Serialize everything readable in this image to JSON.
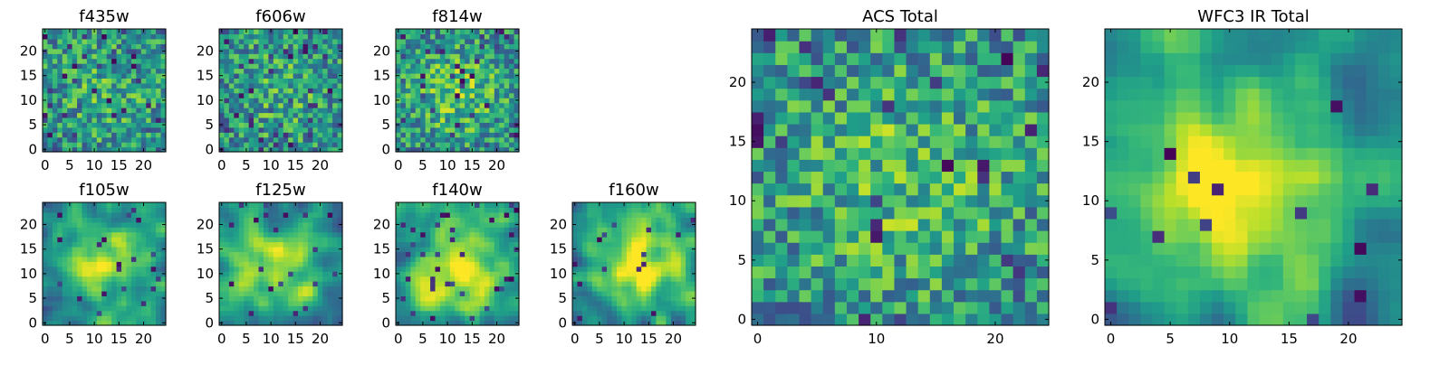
{
  "colormap": "viridis",
  "grid": false,
  "chart_data": [
    {
      "type": "heatmap",
      "title": "f435w",
      "grid_size": 25,
      "xlim": [
        -0.5,
        24.5
      ],
      "ylim": [
        -0.5,
        24.5
      ],
      "xticks": [
        0,
        5,
        10,
        15,
        20
      ],
      "yticks": [
        0,
        5,
        10,
        15,
        20
      ],
      "seed": 11,
      "noise_scale": 1,
      "blob_amp": 0.15,
      "blob_center": [
        12,
        12
      ],
      "blob_sigma": 8,
      "dark_fraction": 0.06
    },
    {
      "type": "heatmap",
      "title": "f606w",
      "grid_size": 25,
      "xlim": [
        -0.5,
        24.5
      ],
      "ylim": [
        -0.5,
        24.5
      ],
      "xticks": [
        0,
        5,
        10,
        15,
        20
      ],
      "yticks": [
        0,
        5,
        10,
        15,
        20
      ],
      "seed": 23,
      "noise_scale": 1,
      "blob_amp": 0.15,
      "blob_center": [
        12,
        12
      ],
      "blob_sigma": 8,
      "dark_fraction": 0.06
    },
    {
      "type": "heatmap",
      "title": "f814w",
      "grid_size": 25,
      "xlim": [
        -0.5,
        24.5
      ],
      "ylim": [
        -0.5,
        24.5
      ],
      "xticks": [
        0,
        5,
        10,
        15,
        20
      ],
      "yticks": [
        0,
        5,
        10,
        15,
        20
      ],
      "seed": 37,
      "noise_scale": 1,
      "blob_amp": 0.25,
      "blob_center": [
        12,
        12
      ],
      "blob_sigma": 7,
      "dark_fraction": 0.06
    },
    {
      "type": "heatmap",
      "title": "f105w",
      "grid_size": 25,
      "xlim": [
        -0.5,
        24.5
      ],
      "ylim": [
        -0.5,
        24.5
      ],
      "xticks": [
        0,
        5,
        10,
        15,
        20
      ],
      "yticks": [
        0,
        5,
        10,
        15,
        20
      ],
      "seed": 41,
      "noise_scale": 3,
      "blob_amp": 0.5,
      "blob_center": [
        12,
        12
      ],
      "blob_sigma": 6,
      "dark_fraction": 0.03
    },
    {
      "type": "heatmap",
      "title": "f125w",
      "grid_size": 25,
      "xlim": [
        -0.5,
        24.5
      ],
      "ylim": [
        -0.5,
        24.5
      ],
      "xticks": [
        0,
        5,
        10,
        15,
        20
      ],
      "yticks": [
        0,
        5,
        10,
        15,
        20
      ],
      "seed": 53,
      "noise_scale": 3,
      "blob_amp": 0.35,
      "blob_center": [
        12,
        12
      ],
      "blob_sigma": 7,
      "dark_fraction": 0.04
    },
    {
      "type": "heatmap",
      "title": "f140w",
      "grid_size": 25,
      "xlim": [
        -0.5,
        24.5
      ],
      "ylim": [
        -0.5,
        24.5
      ],
      "xticks": [
        0,
        5,
        10,
        15,
        20
      ],
      "yticks": [
        0,
        5,
        10,
        15,
        20
      ],
      "seed": 67,
      "noise_scale": 3,
      "blob_amp": 0.45,
      "blob_center": [
        12,
        11
      ],
      "blob_sigma": 7,
      "dark_fraction": 0.04
    },
    {
      "type": "heatmap",
      "title": "f160w",
      "grid_size": 25,
      "xlim": [
        -0.5,
        24.5
      ],
      "ylim": [
        -0.5,
        24.5
      ],
      "xticks": [
        0,
        5,
        10,
        15,
        20
      ],
      "yticks": [
        0,
        5,
        10,
        15,
        20
      ],
      "seed": 79,
      "noise_scale": 3,
      "blob_amp": 0.55,
      "blob_center": [
        13,
        12
      ],
      "blob_sigma": 6,
      "dark_fraction": 0.03
    },
    {
      "type": "heatmap",
      "title": "ACS Total",
      "grid_size": 25,
      "xlim": [
        -0.5,
        24.5
      ],
      "ylim": [
        -0.5,
        24.5
      ],
      "xticks": [
        0,
        10,
        20
      ],
      "yticks": [
        0,
        5,
        10,
        15,
        20
      ],
      "seed": 97,
      "noise_scale": 1,
      "blob_amp": 0.2,
      "blob_center": [
        12,
        12
      ],
      "blob_sigma": 8,
      "dark_fraction": 0.05
    },
    {
      "type": "heatmap",
      "title": "WFC3 IR Total",
      "grid_size": 25,
      "xlim": [
        -0.5,
        24.5
      ],
      "ylim": [
        -0.5,
        24.5
      ],
      "xticks": [
        0,
        5,
        10,
        15,
        20
      ],
      "yticks": [
        0,
        5,
        10,
        15,
        20
      ],
      "seed": 131,
      "noise_scale": 3,
      "blob_amp": 0.55,
      "blob_center": [
        11,
        11
      ],
      "blob_sigma": 6,
      "dark_fraction": 0.03
    }
  ]
}
